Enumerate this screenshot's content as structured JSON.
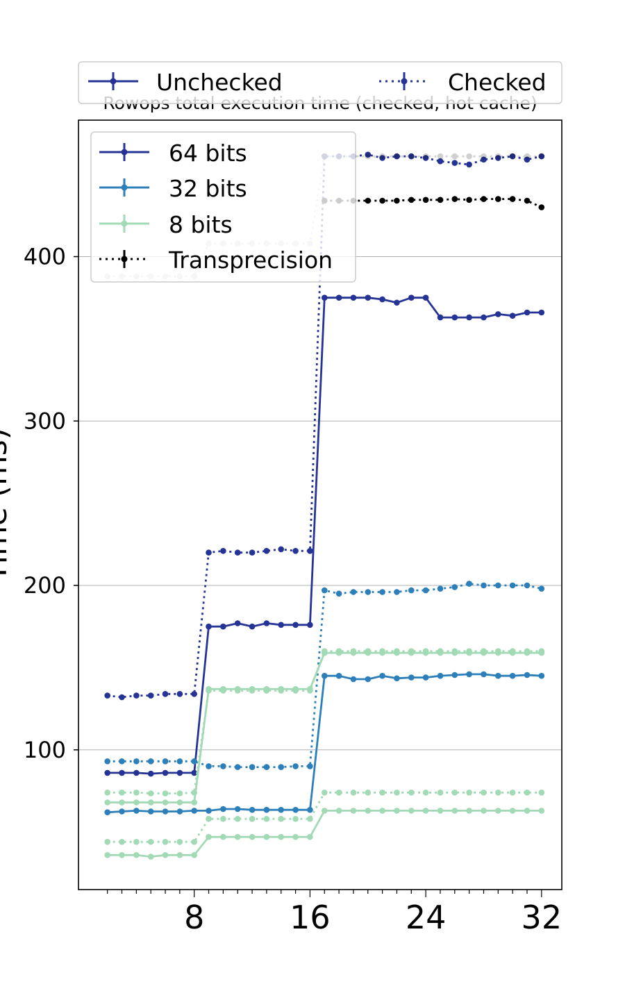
{
  "chart_data": {
    "type": "line",
    "title": "Rowops total execution time (checked, hot cache)",
    "ylabel": "Time (ms)",
    "xlabel": "",
    "x": [
      2,
      3,
      4,
      5,
      6,
      7,
      8,
      9,
      10,
      11,
      12,
      13,
      14,
      15,
      16,
      17,
      18,
      19,
      20,
      21,
      22,
      23,
      24,
      25,
      26,
      27,
      28,
      29,
      30,
      31,
      32
    ],
    "xticks": [
      8,
      16,
      24,
      32
    ],
    "yticks": [
      100,
      200,
      300,
      400
    ],
    "xlim": [
      0.0,
      33.4
    ],
    "ylim": [
      15,
      483
    ],
    "grid": "horizontal",
    "legend_top": {
      "placement": "top",
      "entries": [
        "Unchecked",
        "Checked"
      ]
    },
    "legend_inner": {
      "placement": "upper-left",
      "entries": [
        "64 bits",
        "32 bits",
        "8 bits",
        "Transprecision"
      ]
    },
    "colors": {
      "64 bits": "#253494",
      "32 bits": "#2c7fb8",
      "8 bits": "#a1dab4",
      "Transprecision": "#000000"
    },
    "series": [
      {
        "name": "64 bits",
        "style": "Unchecked",
        "values": [
          86,
          86,
          86,
          85.5,
          86,
          86,
          86,
          175,
          175,
          177,
          175,
          177,
          176,
          176,
          176,
          375,
          375,
          375,
          375,
          374,
          372,
          375,
          375,
          363,
          363,
          363,
          363,
          365,
          364,
          366,
          366
        ]
      },
      {
        "name": "64 bits",
        "style": "Checked",
        "values": [
          133,
          132,
          133,
          133,
          134,
          134,
          134,
          220,
          221,
          220,
          220,
          221,
          222,
          221,
          221,
          461,
          461,
          461,
          462,
          460,
          461,
          461,
          460,
          458,
          457,
          456,
          459,
          460,
          461,
          459,
          461
        ]
      },
      {
        "name": "32 bits",
        "style": "Unchecked",
        "values": [
          62,
          62.5,
          63,
          62.5,
          62.5,
          62.5,
          63,
          63,
          64,
          64,
          63.5,
          63.5,
          63.5,
          63.5,
          63.5,
          145,
          145,
          143,
          143,
          145,
          143.5,
          144,
          144,
          145,
          145.5,
          146,
          146,
          145,
          145,
          145.5,
          145
        ]
      },
      {
        "name": "32 bits",
        "style": "Checked",
        "values": [
          93,
          93,
          93,
          93,
          93,
          93,
          93,
          90,
          90,
          89.5,
          89.5,
          89.5,
          89.5,
          90,
          90,
          197,
          195,
          196,
          196,
          196,
          196,
          197,
          197,
          198,
          199,
          201,
          200,
          200,
          200,
          200,
          198
        ]
      },
      {
        "name": "8 bits",
        "style": "Unchecked a",
        "values": [
          68,
          68,
          68,
          68,
          68,
          68,
          68,
          137,
          137,
          137,
          137,
          137,
          137,
          137,
          137,
          159,
          159,
          159,
          159,
          159,
          159,
          159,
          159,
          159,
          159,
          159,
          159,
          159,
          159,
          159,
          159
        ]
      },
      {
        "name": "8 bits",
        "style": "Unchecked b",
        "values": [
          36,
          36,
          36,
          35,
          36,
          36,
          36,
          47,
          47,
          47,
          47,
          47,
          47,
          47,
          47,
          63,
          63,
          63,
          63,
          63,
          63,
          63,
          63,
          63,
          63,
          63,
          63,
          63,
          63,
          63,
          63
        ]
      },
      {
        "name": "8 bits",
        "style": "Checked a",
        "values": [
          74,
          74,
          74,
          73.5,
          73.5,
          73.5,
          74,
          136,
          136,
          136,
          136,
          136,
          136,
          136,
          136,
          160,
          160,
          160,
          160,
          160,
          160,
          160,
          160,
          160,
          160,
          160,
          160,
          160,
          160,
          160,
          160
        ]
      },
      {
        "name": "8 bits",
        "style": "Checked b",
        "values": [
          44,
          44,
          44,
          44,
          44,
          44,
          44,
          58,
          58,
          58,
          58,
          58,
          58,
          58,
          58,
          74,
          74,
          74,
          74,
          74,
          74,
          74,
          74,
          74,
          74,
          74,
          74,
          74,
          74,
          74,
          74
        ]
      },
      {
        "name": "Transprecision",
        "style": "Checked, light",
        "values": [
          388,
          388,
          388,
          388,
          388,
          388,
          388,
          408,
          408,
          408,
          408,
          408,
          408,
          408,
          408,
          461,
          461,
          461,
          461,
          461,
          461,
          461,
          461,
          461,
          461,
          461,
          461,
          461,
          461,
          461,
          461
        ]
      },
      {
        "name": "Transprecision",
        "style": "Checked",
        "values": [
          null,
          null,
          null,
          null,
          null,
          null,
          null,
          null,
          null,
          null,
          null,
          null,
          null,
          null,
          null,
          434,
          434,
          434,
          434,
          434,
          434,
          434.5,
          434.5,
          434.5,
          435,
          434.5,
          435,
          435,
          435,
          434,
          430
        ]
      }
    ]
  }
}
